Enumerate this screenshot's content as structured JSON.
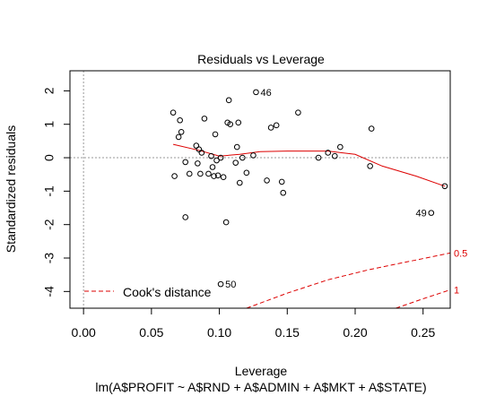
{
  "chart_data": {
    "type": "scatter",
    "title": "Residuals vs Leverage",
    "xlabel": "Leverage",
    "subtitle": "lm(A$PROFIT ~ A$RND + A$ADMIN + A$MKT + A$STATE)",
    "ylabel": "Standardized residuals",
    "xlim": [
      -0.01,
      0.27
    ],
    "ylim": [
      -4.5,
      2.6
    ],
    "x_ticks": [
      0.0,
      0.05,
      0.1,
      0.15,
      0.2,
      0.25
    ],
    "x_tick_labels": [
      "0.00",
      "0.05",
      "0.10",
      "0.15",
      "0.20",
      "0.25"
    ],
    "y_ticks": [
      -4,
      -3,
      -2,
      -1,
      0,
      1,
      2
    ],
    "y_tick_labels": [
      "-4",
      "-3",
      "-2",
      "-1",
      "0",
      "1",
      "2"
    ],
    "points": [
      {
        "x": 0.066,
        "y": 1.35
      },
      {
        "x": 0.067,
        "y": -0.55
      },
      {
        "x": 0.07,
        "y": 0.62
      },
      {
        "x": 0.071,
        "y": 1.12
      },
      {
        "x": 0.072,
        "y": 0.77
      },
      {
        "x": 0.075,
        "y": -0.13
      },
      {
        "x": 0.075,
        "y": -1.78
      },
      {
        "x": 0.078,
        "y": -0.48
      },
      {
        "x": 0.083,
        "y": 0.36
      },
      {
        "x": 0.084,
        "y": -0.17
      },
      {
        "x": 0.085,
        "y": 0.25
      },
      {
        "x": 0.086,
        "y": -0.48
      },
      {
        "x": 0.087,
        "y": 0.15
      },
      {
        "x": 0.089,
        "y": 1.17
      },
      {
        "x": 0.092,
        "y": -0.48
      },
      {
        "x": 0.094,
        "y": 0.05
      },
      {
        "x": 0.095,
        "y": -0.28
      },
      {
        "x": 0.096,
        "y": -0.55
      },
      {
        "x": 0.097,
        "y": 0.7
      },
      {
        "x": 0.098,
        "y": -0.08
      },
      {
        "x": 0.099,
        "y": -0.53
      },
      {
        "x": 0.101,
        "y": 0.0
      },
      {
        "x": 0.103,
        "y": -0.58
      },
      {
        "x": 0.105,
        "y": -1.93
      },
      {
        "x": 0.106,
        "y": 1.05
      },
      {
        "x": 0.107,
        "y": 1.72
      },
      {
        "x": 0.108,
        "y": 1.0
      },
      {
        "x": 0.112,
        "y": -0.15
      },
      {
        "x": 0.113,
        "y": 0.32
      },
      {
        "x": 0.114,
        "y": 1.05
      },
      {
        "x": 0.115,
        "y": -0.75
      },
      {
        "x": 0.117,
        "y": 0.0
      },
      {
        "x": 0.12,
        "y": -0.45
      },
      {
        "x": 0.125,
        "y": 0.07
      },
      {
        "x": 0.127,
        "y": 1.96
      },
      {
        "x": 0.135,
        "y": -0.68
      },
      {
        "x": 0.138,
        "y": 0.9
      },
      {
        "x": 0.142,
        "y": 0.97
      },
      {
        "x": 0.146,
        "y": -0.72
      },
      {
        "x": 0.147,
        "y": -1.05
      },
      {
        "x": 0.158,
        "y": 1.35
      },
      {
        "x": 0.173,
        "y": 0.0
      },
      {
        "x": 0.18,
        "y": 0.15
      },
      {
        "x": 0.185,
        "y": 0.05
      },
      {
        "x": 0.189,
        "y": 0.32
      },
      {
        "x": 0.211,
        "y": -0.25
      },
      {
        "x": 0.212,
        "y": 0.87
      },
      {
        "x": 0.256,
        "y": -1.65
      },
      {
        "x": 0.266,
        "y": -0.85
      },
      {
        "x": 0.101,
        "y": -3.78
      }
    ],
    "point_labels": [
      {
        "label": "46",
        "x": 0.127,
        "y": 1.96,
        "side": "right"
      },
      {
        "label": "49",
        "x": 0.256,
        "y": -1.65,
        "side": "left"
      },
      {
        "label": "50",
        "x": 0.101,
        "y": -3.78,
        "side": "right"
      }
    ],
    "smooth_line": {
      "x": [
        0.066,
        0.085,
        0.1,
        0.115,
        0.13,
        0.15,
        0.18,
        0.2,
        0.22,
        0.245,
        0.266
      ],
      "y": [
        0.4,
        0.22,
        0.05,
        0.1,
        0.18,
        0.2,
        0.2,
        0.1,
        -0.25,
        -0.55,
        -0.85
      ]
    },
    "cooks_contours": [
      {
        "level": "0.5",
        "x": [
          0.12,
          0.15,
          0.18,
          0.21,
          0.24,
          0.27
        ],
        "y": [
          -4.5,
          -4.05,
          -3.65,
          -3.35,
          -3.1,
          -2.85
        ]
      },
      {
        "level": "1",
        "x": [
          0.23,
          0.25,
          0.27
        ],
        "y": [
          -4.5,
          -4.22,
          -3.95
        ]
      }
    ],
    "legend": {
      "label": "Cook's distance",
      "position": "bottom-left"
    },
    "colors": {
      "smooth": "#dd0000",
      "cooks": "#dd0000",
      "points": "#000000",
      "reference": "#999999"
    }
  }
}
